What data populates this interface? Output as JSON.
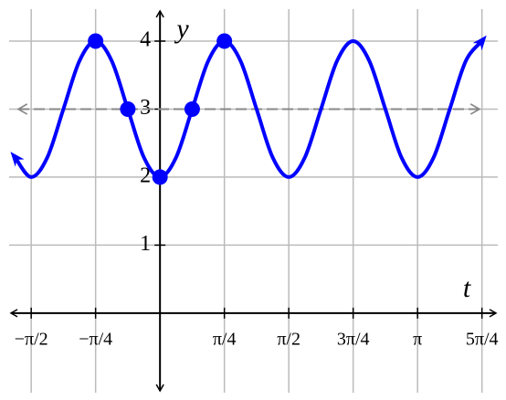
{
  "chart_data": {
    "type": "line",
    "x_label": "t",
    "y_label": "y",
    "xlim": [
      -1.84,
      4.12
    ],
    "ylim": [
      -1.17,
      4.47
    ],
    "xticks": [
      {
        "value": -1.5708,
        "label": "−π/2"
      },
      {
        "value": -0.7854,
        "label": "−π/4"
      },
      {
        "value": 0.7854,
        "label": "π/4"
      },
      {
        "value": 1.5708,
        "label": "π/2"
      },
      {
        "value": 2.3562,
        "label": "3π/4"
      },
      {
        "value": 3.1416,
        "label": "π"
      },
      {
        "value": 3.927,
        "label": "5π/4"
      }
    ],
    "yticks": [
      1,
      2,
      3,
      4
    ],
    "grid": true,
    "midline": 3,
    "series": [
      {
        "color": "#0000ff",
        "x": [
          -1.7671,
          -1.5708,
          -1.3744,
          -1.1781,
          -0.9817,
          -0.7854,
          -0.589,
          -0.3927,
          -0.1963,
          0,
          0.1963,
          0.3927,
          0.589,
          0.7854,
          0.9817,
          1.1781,
          1.3744,
          1.5708,
          1.7671,
          1.9635,
          2.1598,
          2.3562,
          2.5525,
          2.7489,
          2.9452,
          3.1416,
          3.3379,
          3.5343,
          3.7306,
          3.927
        ],
        "values": [
          2.29,
          2,
          2.29,
          3,
          3.71,
          4,
          3.71,
          3,
          2.29,
          2,
          2.29,
          3,
          3.71,
          4,
          3.71,
          3,
          2.29,
          2,
          2.29,
          3,
          3.71,
          4,
          3.71,
          3,
          2.29,
          2,
          2.29,
          3,
          3.71,
          4
        ]
      },
      {
        "type": "scatter",
        "color": "#0000ff",
        "x": [
          -0.7854,
          -0.3927,
          0,
          0.3927,
          0.7854
        ],
        "values": [
          4,
          3,
          2,
          3,
          4
        ]
      }
    ]
  }
}
